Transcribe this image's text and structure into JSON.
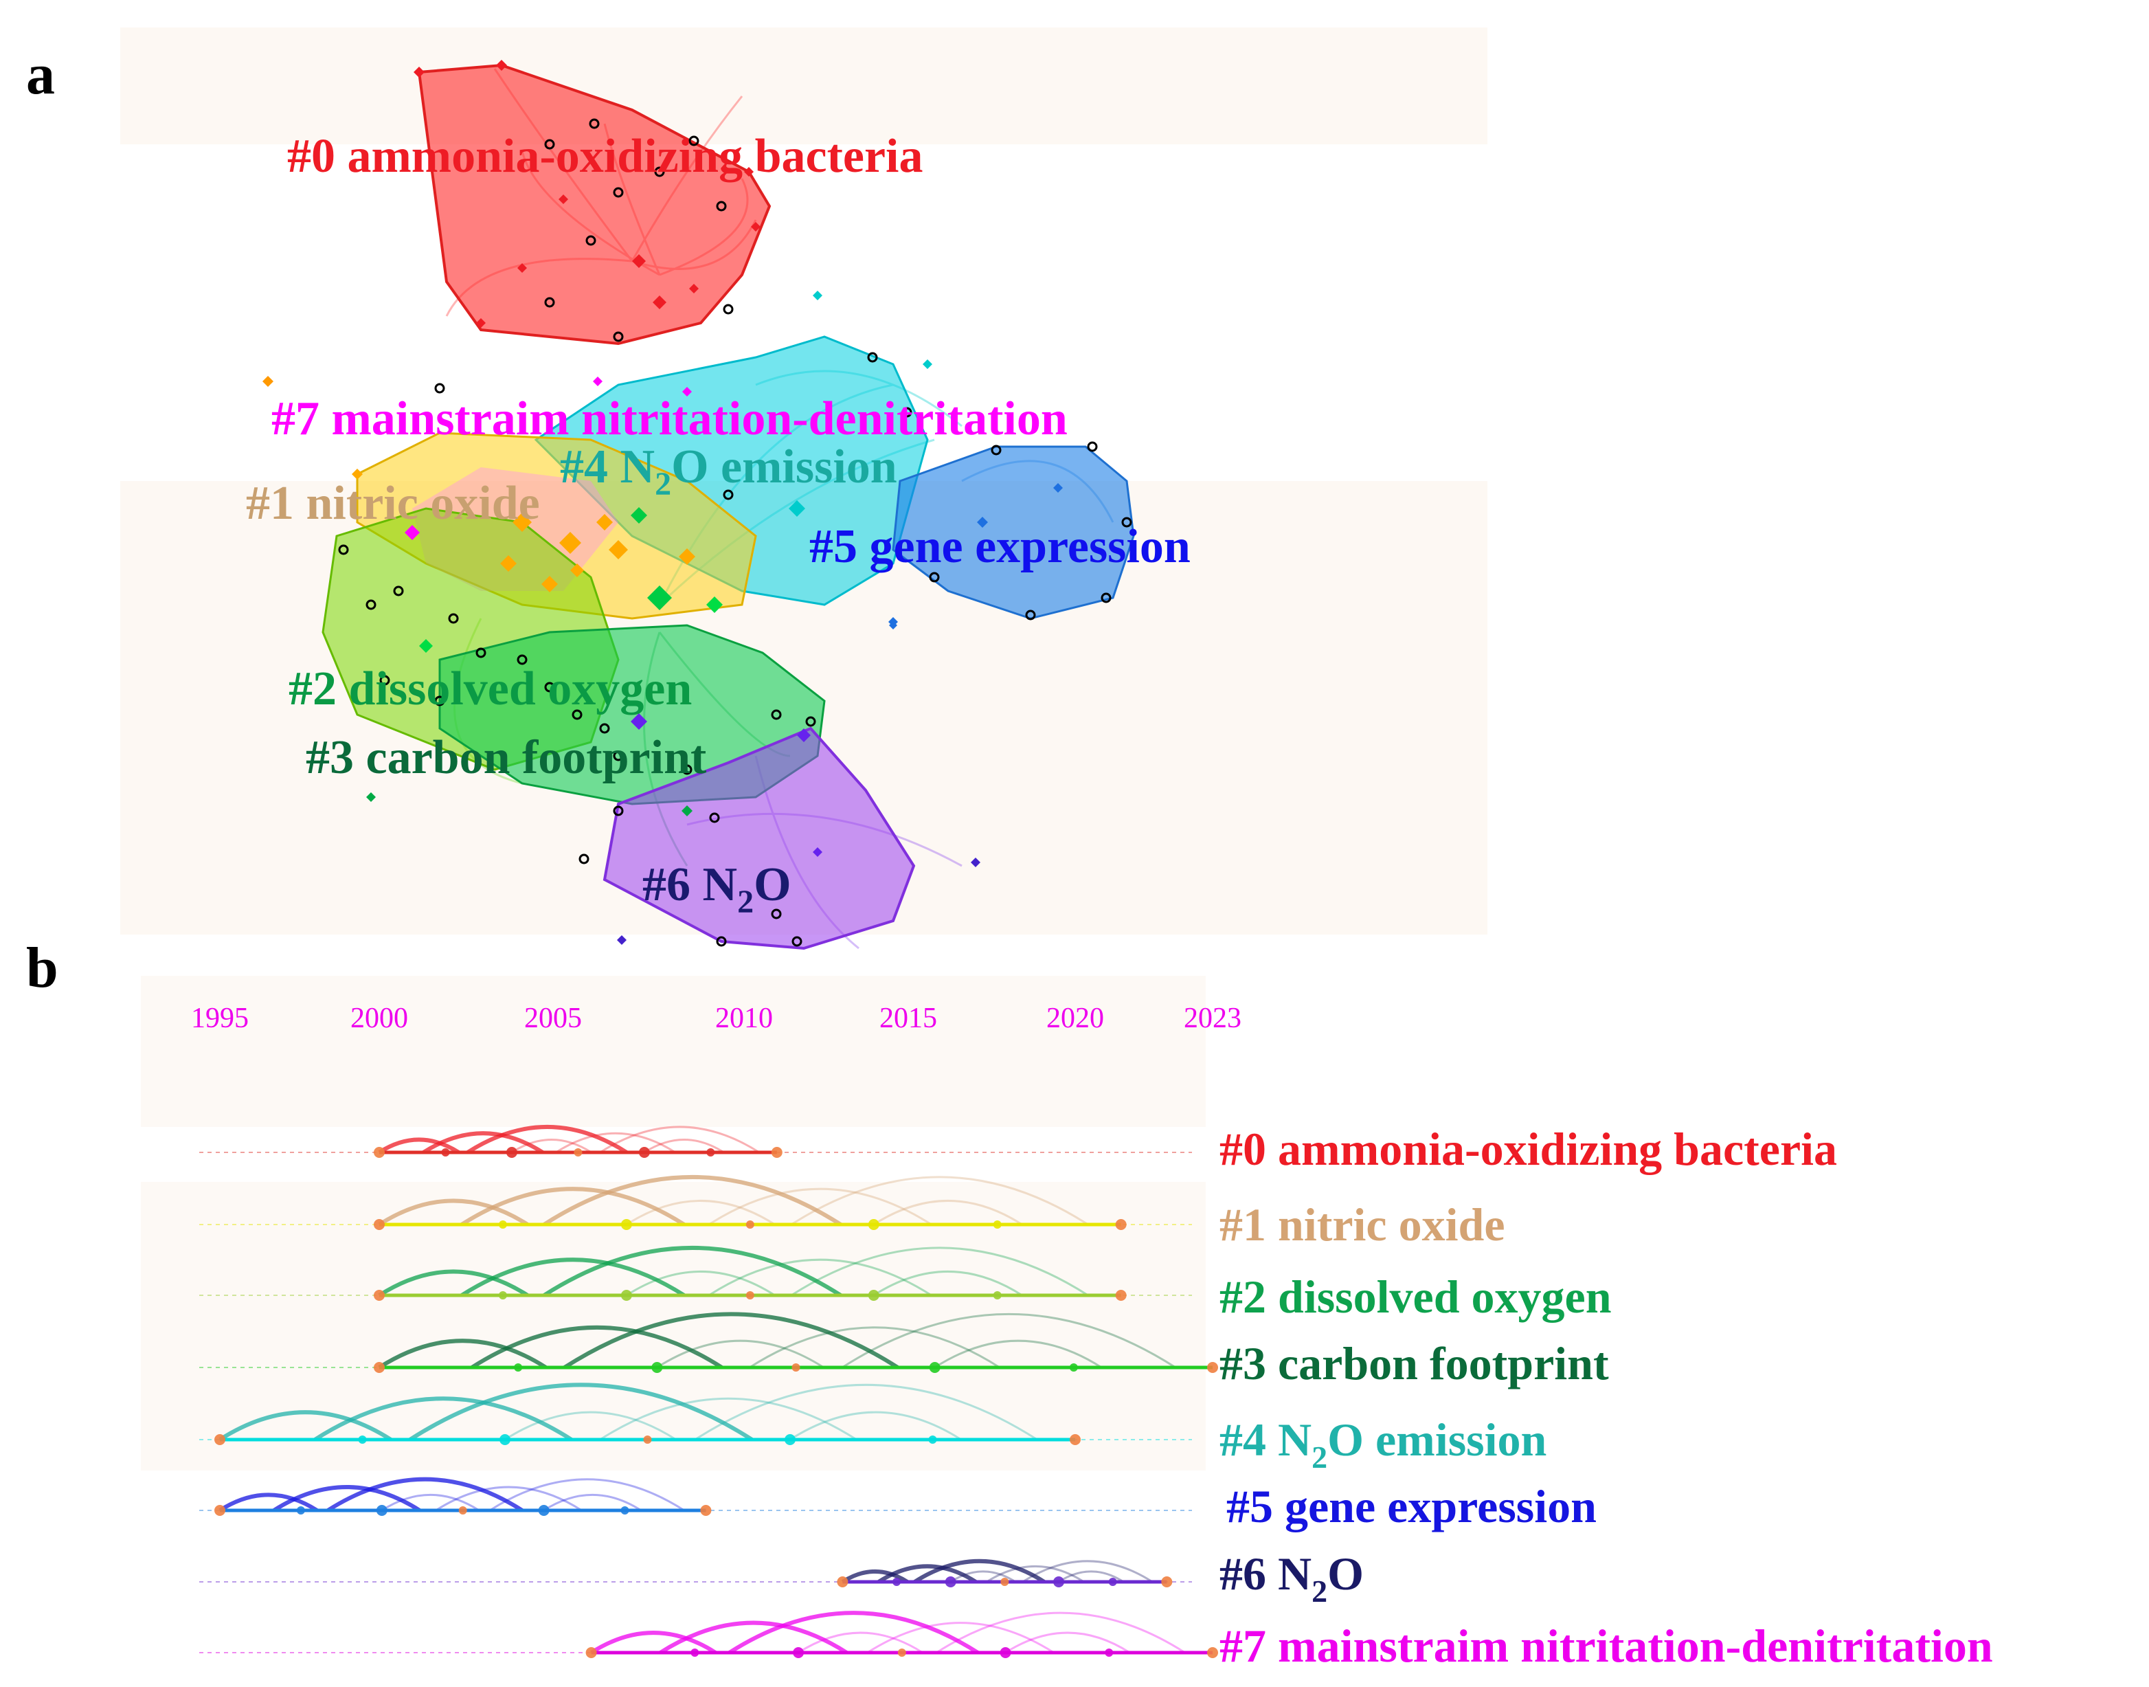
{
  "panels": {
    "a": "a",
    "b": "b"
  },
  "chart_data": [
    {
      "type": "network",
      "panel": "a",
      "title": "",
      "clusters": [
        {
          "id": 0,
          "label_prefix": "#0 ",
          "label": "ammonia-oxidizing bacteria",
          "color": "#ff2020"
        },
        {
          "id": 7,
          "label_prefix": "#7 ",
          "label": "mainstraim nitritation-denitritation",
          "color": "#ff00ff"
        },
        {
          "id": 4,
          "label_prefix": "#4 N",
          "label_sub": "2",
          "label_suffix": "O emission",
          "color": "#20b2aa"
        },
        {
          "id": 1,
          "label_prefix": "#1 ",
          "label": "nitric oxide",
          "color": "#d2a06e"
        },
        {
          "id": 5,
          "label_prefix": "#5 ",
          "label": "gene expression",
          "color": "#1010ee"
        },
        {
          "id": 2,
          "label_prefix": "#2 ",
          "label": "dissolved oxygen",
          "color": "#0aa04a"
        },
        {
          "id": 3,
          "label_prefix": "#3 ",
          "label": "carbon footprint",
          "color": "#0a6a3a"
        },
        {
          "id": 6,
          "label_prefix": "#6 N",
          "label_sub": "2",
          "label_suffix": "O",
          "color": "#1a1a6e"
        }
      ]
    },
    {
      "type": "timeline",
      "panel": "b",
      "x_ticks": [
        "1995",
        "2000",
        "2005",
        "2010",
        "2015",
        "2020",
        "2023"
      ],
      "xlim": [
        1995,
        2023
      ],
      "series": [
        {
          "cluster": "#0",
          "text": "#0 ammonia-oxidizing bacteria",
          "color": "#ee1c25",
          "line_color": "#e0302a",
          "start": 2000,
          "end": 2011
        },
        {
          "cluster": "#1",
          "text": "#1 nitric oxide",
          "color": "#d4a373",
          "line_color": "#e6e600",
          "start": 2000,
          "end": 2021
        },
        {
          "cluster": "#2",
          "text": "#2 dissolved oxygen",
          "color": "#0ea24d",
          "line_color": "#9acd32",
          "start": 2000,
          "end": 2021
        },
        {
          "cluster": "#3",
          "text": "#3 carbon footprint",
          "color": "#0b6b3a",
          "line_color": "#22cc22",
          "start": 2000,
          "end": 2023
        },
        {
          "cluster": "#4",
          "text_prefix": "#4 N",
          "text_sub": "2",
          "text_suffix": "O emission",
          "color": "#20b2aa",
          "line_color": "#00dddd",
          "start": 1995,
          "end": 2020
        },
        {
          "cluster": "#5",
          "text": "#5 gene expression",
          "color": "#1515e0",
          "line_color": "#1e7fe0",
          "start": 1995,
          "end": 2009
        },
        {
          "cluster": "#6",
          "text_prefix": "#6 N",
          "text_sub": "2",
          "text_suffix": "O",
          "color": "#1a1a66",
          "line_color": "#6a2ad0",
          "start": 2013,
          "end": 2022
        },
        {
          "cluster": "#7",
          "text": "#7 mainstraim nitritation-denitritation",
          "color": "#ee00ee",
          "line_color": "#dd00dd",
          "start": 2006,
          "end": 2023
        }
      ]
    }
  ]
}
